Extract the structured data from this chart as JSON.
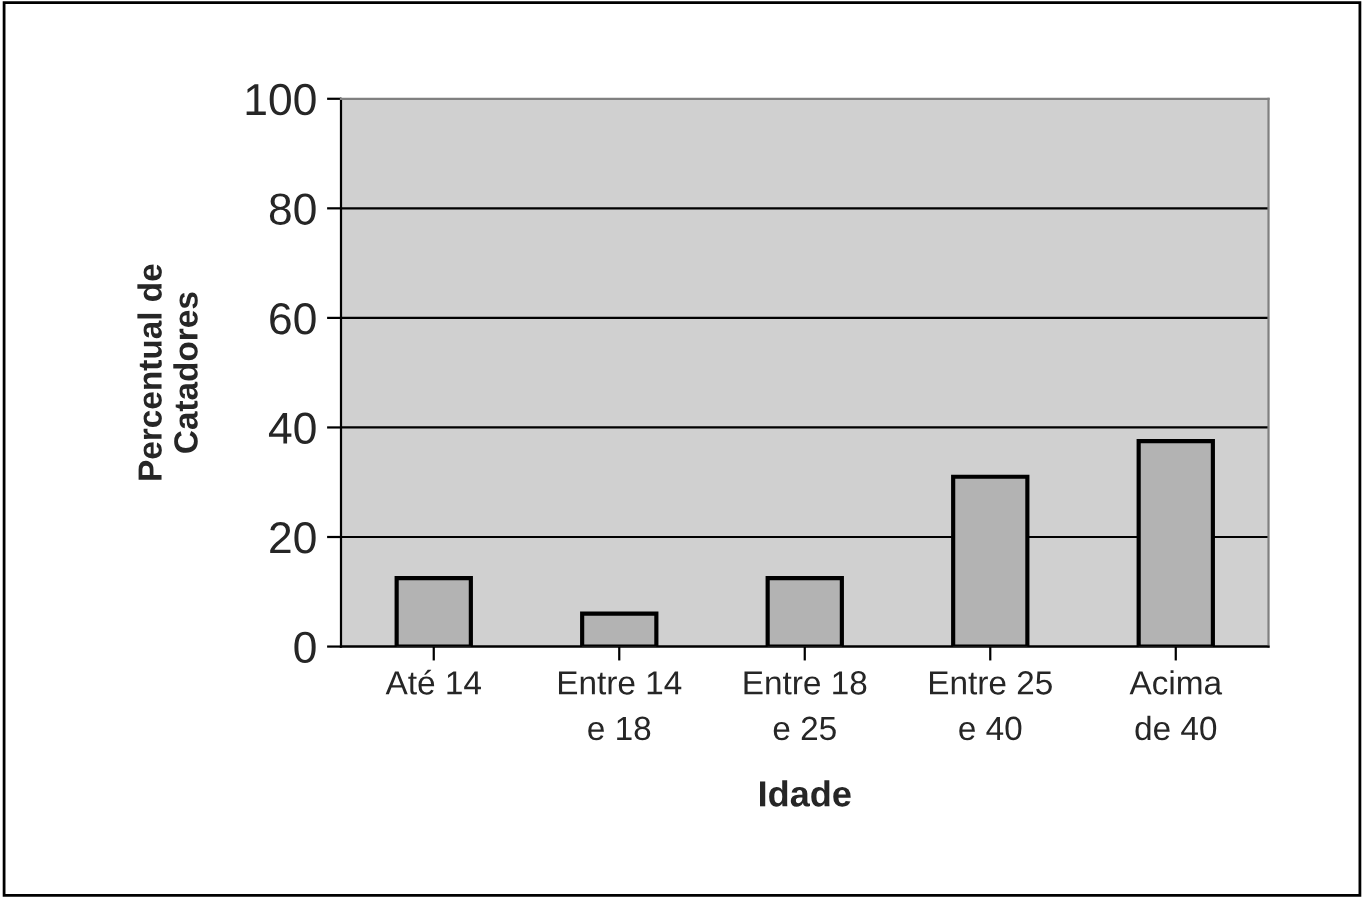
{
  "chart_data": {
    "type": "bar",
    "categories": [
      "Até 14",
      "Entre 14\ne 18",
      "Entre 18\ne 25",
      "Entre 25\ne 40",
      "Acima\nde 40"
    ],
    "values": [
      12.5,
      6,
      12.5,
      31,
      37.5
    ],
    "color": "#b3b3b3",
    "xlabel": "Idade",
    "ylabel": "Percentual de\nCatadores",
    "ylim": [
      0,
      100
    ],
    "yticks": [
      0,
      20,
      40,
      60,
      80,
      100
    ],
    "grid": "y",
    "legend": false
  }
}
